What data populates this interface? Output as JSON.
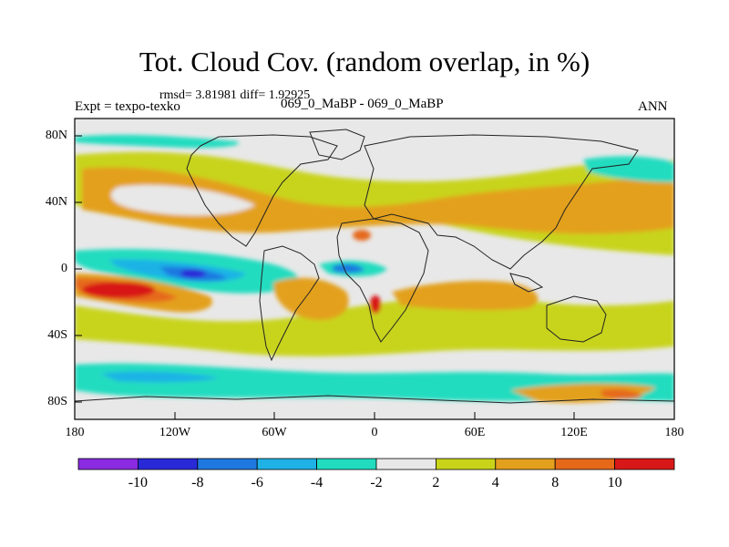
{
  "figure": {
    "title": "Tot. Cloud Cov. (random overlap, in %)",
    "stats": "rmsd= 3.81981 diff= 1.92925",
    "experiment": "Expt = texpo-texko",
    "case": "069_0_MaBP - 069_0_MaBP",
    "season": "ANN"
  },
  "axes": {
    "y_ticks": [
      "80N",
      "40N",
      "0",
      "40S",
      "80S"
    ],
    "x_ticks": [
      "180",
      "120W",
      "60W",
      "0",
      "60E",
      "120E",
      "180"
    ]
  },
  "colorbar": {
    "labels": [
      "-10",
      "-8",
      "-6",
      "-4",
      "-2",
      "2",
      "4",
      "8",
      "10"
    ],
    "colors": [
      "#8a2be2",
      "#2929d8",
      "#1f78e0",
      "#1fb2e6",
      "#22dcc0",
      "#e8e8e8",
      "#c8d41a",
      "#e3a01c",
      "#e6691a",
      "#d81818"
    ]
  },
  "map_colors": {
    "neutral": "#e8e8e8",
    "light_pos": "#c8d41a",
    "mid_pos": "#e3a01c",
    "strong_pos": "#e6691a",
    "max_pos": "#d81818",
    "light_neg": "#22dcc0",
    "mid_neg": "#1fb2e6",
    "strong_neg": "#1f78e0",
    "max_neg": "#2929d8"
  }
}
